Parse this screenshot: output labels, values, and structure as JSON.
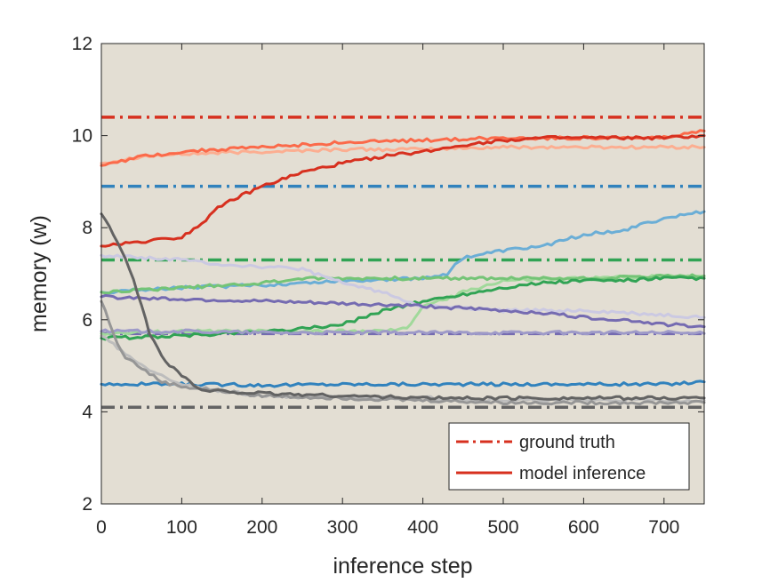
{
  "chart_data": {
    "type": "line",
    "title": "",
    "xlabel": "inference step",
    "ylabel": "memory (w)",
    "xlim": [
      0,
      750
    ],
    "ylim": [
      2,
      12
    ],
    "xticks": [
      0,
      100,
      200,
      300,
      400,
      500,
      600,
      700
    ],
    "yticks": [
      2,
      4,
      6,
      8,
      10,
      12
    ],
    "grid": false,
    "background": "#e3ded3",
    "legend": {
      "position": "bottom-right",
      "entries": [
        {
          "label": "ground truth",
          "style": "dash-dot",
          "color": "#d7301f"
        },
        {
          "label": "model inference",
          "style": "solid",
          "color": "#d7301f"
        }
      ]
    },
    "ground_truth": [
      {
        "color": "#d7301f",
        "value": 10.4
      },
      {
        "color": "#3182bd",
        "value": 8.9
      },
      {
        "color": "#31a354",
        "value": 7.3
      },
      {
        "color": "#756bb1",
        "value": 5.7
      },
      {
        "color": "#636363",
        "value": 4.1
      }
    ],
    "series": [
      {
        "color": "#fcae91",
        "x": [
          0,
          50,
          100,
          200,
          300,
          400,
          500,
          600,
          700,
          750
        ],
        "y": [
          9.4,
          9.55,
          9.6,
          9.65,
          9.7,
          9.7,
          9.75,
          9.75,
          9.75,
          9.75
        ]
      },
      {
        "color": "#fb6a4a",
        "x": [
          0,
          50,
          100,
          200,
          300,
          400,
          500,
          600,
          700,
          750
        ],
        "y": [
          9.35,
          9.55,
          9.65,
          9.75,
          9.85,
          9.9,
          9.95,
          9.95,
          9.95,
          10.1
        ]
      },
      {
        "color": "#d7301f",
        "x": [
          0,
          25,
          50,
          75,
          100,
          125,
          150,
          200,
          250,
          300,
          350,
          400,
          450,
          500,
          550,
          600,
          650,
          700,
          750
        ],
        "y": [
          7.6,
          7.65,
          7.7,
          7.75,
          7.8,
          8.1,
          8.5,
          8.9,
          9.2,
          9.4,
          9.55,
          9.65,
          9.8,
          9.9,
          9.95,
          9.95,
          9.95,
          9.95,
          10.0
        ]
      },
      {
        "color": "#6baed6",
        "x": [
          0,
          100,
          200,
          300,
          400,
          430,
          450,
          500,
          550,
          600,
          650,
          700,
          750
        ],
        "y": [
          6.6,
          6.7,
          6.75,
          6.85,
          6.9,
          7.0,
          7.35,
          7.5,
          7.6,
          7.85,
          7.95,
          8.2,
          8.35
        ]
      },
      {
        "color": "#3182bd",
        "x": [
          0,
          100,
          200,
          300,
          400,
          500,
          600,
          700,
          750
        ],
        "y": [
          4.6,
          4.6,
          4.58,
          4.6,
          4.6,
          4.6,
          4.6,
          4.6,
          4.65
        ]
      },
      {
        "color": "#a1d99b",
        "x": [
          0,
          100,
          200,
          300,
          350,
          380,
          400,
          430,
          450,
          500,
          600,
          700,
          750
        ],
        "y": [
          5.7,
          5.75,
          5.75,
          5.75,
          5.75,
          5.8,
          6.3,
          6.45,
          6.6,
          6.85,
          6.9,
          6.95,
          6.95
        ]
      },
      {
        "color": "#74c476",
        "x": [
          0,
          100,
          200,
          250,
          300,
          400,
          500,
          600,
          700,
          750
        ],
        "y": [
          6.6,
          6.7,
          6.8,
          6.9,
          6.9,
          6.9,
          6.9,
          6.9,
          6.95,
          6.95
        ]
      },
      {
        "color": "#31a354",
        "x": [
          0,
          100,
          200,
          250,
          300,
          350,
          400,
          450,
          500,
          550,
          600,
          650,
          700,
          750
        ],
        "y": [
          5.6,
          5.65,
          5.75,
          5.8,
          5.9,
          6.2,
          6.4,
          6.55,
          6.7,
          6.8,
          6.85,
          6.85,
          6.9,
          6.9
        ]
      },
      {
        "color": "#cbc9e2",
        "x": [
          0,
          50,
          100,
          150,
          200,
          250,
          300,
          350,
          400,
          500,
          600,
          700,
          750
        ],
        "y": [
          7.4,
          7.35,
          7.3,
          7.2,
          7.15,
          7.1,
          6.8,
          6.6,
          6.3,
          6.2,
          6.2,
          6.1,
          6.05
        ]
      },
      {
        "color": "#9e9ac8",
        "x": [
          0,
          100,
          200,
          300,
          400,
          500,
          600,
          700,
          750
        ],
        "y": [
          5.75,
          5.75,
          5.72,
          5.72,
          5.72,
          5.72,
          5.72,
          5.72,
          5.7
        ]
      },
      {
        "color": "#756bb1",
        "x": [
          0,
          100,
          200,
          300,
          400,
          450,
          500,
          550,
          600,
          650,
          700,
          750
        ],
        "y": [
          6.5,
          6.45,
          6.4,
          6.35,
          6.3,
          6.25,
          6.2,
          6.15,
          6.05,
          6.0,
          5.9,
          5.85
        ]
      },
      {
        "color": "#bdbdbd",
        "x": [
          0,
          20,
          50,
          100,
          150,
          200,
          300,
          400,
          500,
          600,
          700,
          750
        ],
        "y": [
          5.65,
          5.4,
          5.0,
          4.6,
          4.45,
          4.35,
          4.3,
          4.3,
          4.25,
          4.25,
          4.25,
          4.25
        ]
      },
      {
        "color": "#969696",
        "x": [
          0,
          20,
          30,
          50,
          75,
          100,
          150,
          200,
          300,
          400,
          500,
          600,
          700,
          750
        ],
        "y": [
          6.4,
          5.5,
          5.2,
          4.95,
          4.65,
          4.55,
          4.45,
          4.35,
          4.3,
          4.25,
          4.2,
          4.2,
          4.2,
          4.2
        ]
      },
      {
        "color": "#636363",
        "x": [
          0,
          20,
          40,
          60,
          80,
          100,
          125,
          150,
          200,
          300,
          400,
          500,
          600,
          700,
          750
        ],
        "y": [
          8.3,
          7.7,
          6.9,
          5.7,
          5.1,
          4.8,
          4.45,
          4.45,
          4.4,
          4.35,
          4.3,
          4.3,
          4.3,
          4.3,
          4.3
        ]
      }
    ]
  }
}
